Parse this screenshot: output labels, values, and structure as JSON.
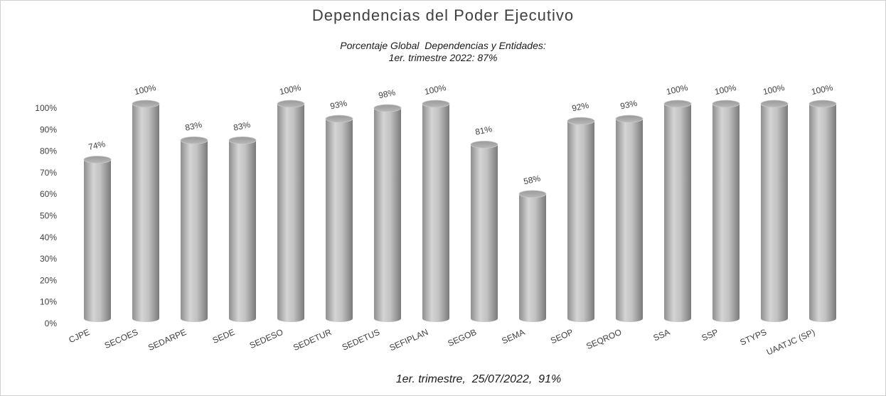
{
  "chart_data": {
    "type": "bar",
    "title": "Dependencias del Poder Ejecutivo",
    "subtitle_lines": [
      "Porcentaje Global  Dependencias y Entidades:",
      "1er. trimestre 2022: 87%"
    ],
    "footer": "1er. trimestre,  25/07/2022,  91%",
    "categories": [
      "CJPE",
      "SECOES",
      "SEDARPE",
      "SEDE",
      "SEDESO",
      "SEDETUR",
      "SEDETUS",
      "SEFIPLAN",
      "SEGOB",
      "SEMA",
      "SEOP",
      "SEQROO",
      "SSA",
      "SSP",
      "STYPS",
      "UAATJC (SP)"
    ],
    "values": [
      74,
      100,
      83,
      83,
      100,
      93,
      98,
      100,
      81,
      58,
      92,
      93,
      100,
      100,
      100,
      100
    ],
    "data_labels": [
      "74%",
      "100%",
      "83%",
      "83%",
      "100%",
      "93%",
      "98%",
      "100%",
      "81%",
      "58%",
      "92%",
      "93%",
      "100%",
      "100%",
      "100%",
      "100%"
    ],
    "yticks": [
      "0%",
      "10%",
      "20%",
      "30%",
      "40%",
      "50%",
      "60%",
      "70%",
      "80%",
      "90%",
      "100%"
    ],
    "ylim": [
      0,
      100
    ],
    "grid": false,
    "bar_style": "3d-cylinder",
    "bar_color": "#b0b0b0"
  }
}
